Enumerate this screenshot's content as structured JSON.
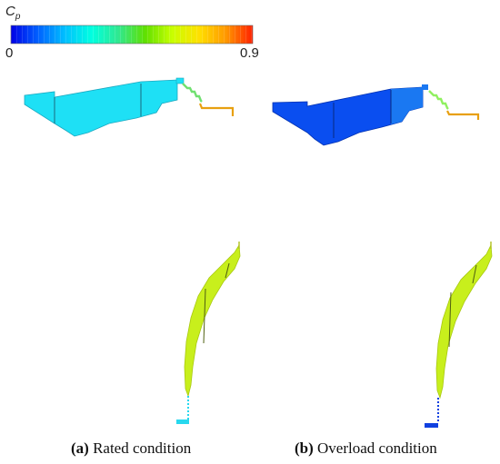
{
  "colorbar": {
    "title": "C",
    "title_sub": "p",
    "min_label": "0",
    "max_label": "0.9",
    "stops": [
      "#0000e6",
      "#0060ff",
      "#00bfff",
      "#00ffe0",
      "#30e890",
      "#60e000",
      "#c8ff00",
      "#ffe000",
      "#ff9800",
      "#ff2000"
    ]
  },
  "panels": [
    {
      "tag": "(a)",
      "label": "Rated condition",
      "top_fill": "#1ee0f5",
      "top_band_fill": "#1ee0f5",
      "bottom_fill": "#c8ef1c",
      "foot_fill": "#28d8ee"
    },
    {
      "tag": "(b)",
      "label": "Overload condition",
      "top_fill": "#0a4ef0",
      "top_band_fill": "#1a78f2",
      "bottom_fill": "#c8ef1c",
      "foot_fill": "#1040e0"
    }
  ],
  "colors": {
    "outlet_pipe": "#e8a010",
    "stair_a": "#70e070",
    "stair_b": "#90f060"
  }
}
